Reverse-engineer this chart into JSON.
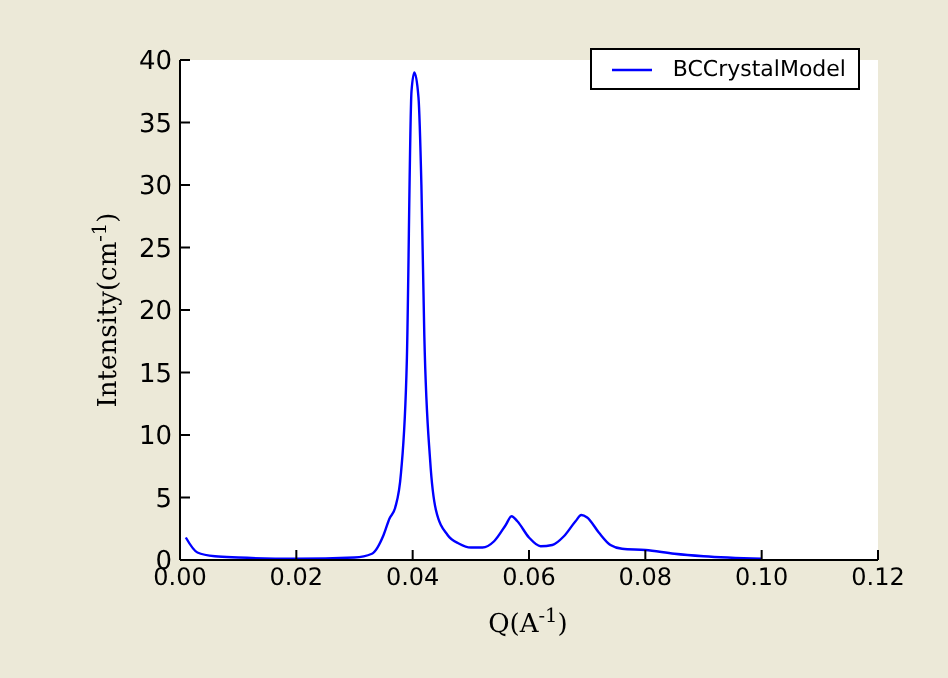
{
  "chart_data": {
    "type": "line",
    "xlabel": "Q(A$^{-1}$)",
    "ylabel": "Intensity(cm$^{-1}$)",
    "xlim": [
      0,
      0.12
    ],
    "xticks": [
      {
        "value": 0,
        "label": "0.00"
      },
      {
        "value": 0.02,
        "label": "0.02"
      },
      {
        "value": 0.04,
        "label": "0.04"
      },
      {
        "value": 0.06,
        "label": "0.06"
      },
      {
        "value": 0.08,
        "label": "0.08"
      },
      {
        "value": 0.1,
        "label": "0.10"
      },
      {
        "value": 0.12,
        "label": "0.12"
      }
    ],
    "ylim": [
      0,
      40
    ],
    "yticks": [
      0,
      5,
      10,
      15,
      20,
      25,
      30,
      35,
      40
    ],
    "grid": false,
    "legend": "top right",
    "marker": "none",
    "line_style": "solid",
    "x": [
      0.001,
      0.003,
      0.006,
      0.01,
      0.02,
      0.03,
      0.033,
      0.035,
      0.036,
      0.037,
      0.038,
      0.039,
      0.0398,
      0.0403,
      0.041,
      0.0415,
      0.042,
      0.043,
      0.044,
      0.046,
      0.048,
      0.05,
      0.052,
      0.054,
      0.056,
      0.057,
      0.058,
      0.06,
      0.062,
      0.064,
      0.066,
      0.068,
      0.069,
      0.07,
      0.072,
      0.074,
      0.076,
      0.08,
      0.085,
      0.09,
      0.1
    ],
    "series": [
      {
        "name": "BCCrystalModel",
        "color": "#0000ff",
        "values": [
          1.8,
          0.6,
          0.3,
          0.2,
          0.1,
          0.2,
          0.5,
          2.0,
          3.3,
          4.2,
          7,
          16,
          37.5,
          39,
          37,
          30,
          18,
          8,
          4,
          2,
          1.3,
          1.0,
          1.0,
          1.5,
          2.8,
          3.5,
          3.1,
          1.8,
          1.1,
          1.2,
          1.9,
          3.1,
          3.6,
          3.4,
          2.2,
          1.2,
          0.9,
          0.8,
          0.5,
          0.3,
          0.1
        ]
      }
    ]
  }
}
